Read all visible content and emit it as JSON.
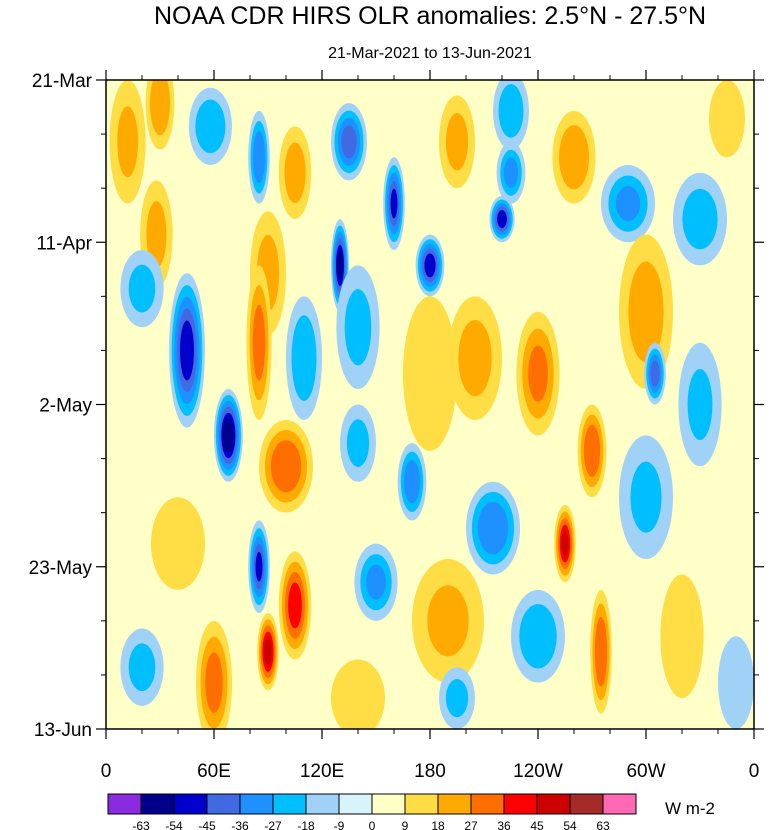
{
  "chart_data": {
    "type": "heatmap",
    "title": "NOAA CDR HIRS OLR anomalies: 2.5°N - 27.5°N",
    "subtitle": "21-Mar-2021 to 13-Jun-2021",
    "x_label_ticks": [
      "0",
      "60E",
      "120E",
      "180",
      "120W",
      "60W",
      "0"
    ],
    "x_tick_values": [
      0,
      60,
      120,
      180,
      240,
      300,
      360
    ],
    "xlim": [
      0,
      360
    ],
    "y_label_ticks": [
      "21-Mar",
      "11-Apr",
      "2-May",
      "23-May",
      "13-Jun"
    ],
    "y_tick_values": [
      0,
      21,
      42,
      63,
      84
    ],
    "ylim": [
      0,
      84
    ],
    "colorbar": {
      "levels": [
        -63,
        -54,
        -45,
        -36,
        -27,
        -18,
        -9,
        0,
        9,
        18,
        27,
        36,
        45,
        54,
        63
      ],
      "colors": [
        "#8a2be2",
        "#00008b",
        "#0000cd",
        "#4169e1",
        "#1e90ff",
        "#00bfff",
        "#a0d2f8",
        "#d8f4fb",
        "#ffffc8",
        "#ffdd44",
        "#ffaa00",
        "#ff6e00",
        "#ff0000",
        "#cc0000",
        "#a52a2a",
        "#ff69b4"
      ],
      "units": "W m-2"
    },
    "anomalies": [
      {
        "lon": 30,
        "day": 3,
        "value": 25,
        "rx": 8,
        "ry": 6
      },
      {
        "lon": 12,
        "day": 8,
        "value": 18,
        "rx": 10,
        "ry": 8
      },
      {
        "lon": 28,
        "day": 20,
        "value": 20,
        "rx": 9,
        "ry": 7
      },
      {
        "lon": 58,
        "day": 6,
        "value": -25,
        "rx": 12,
        "ry": 5
      },
      {
        "lon": 85,
        "day": 10,
        "value": -35,
        "rx": 6,
        "ry": 6
      },
      {
        "lon": 105,
        "day": 12,
        "value": 22,
        "rx": 9,
        "ry": 6
      },
      {
        "lon": 135,
        "day": 8,
        "value": -40,
        "rx": 10,
        "ry": 5
      },
      {
        "lon": 160,
        "day": 16,
        "value": -45,
        "rx": 6,
        "ry": 6
      },
      {
        "lon": 195,
        "day": 8,
        "value": 20,
        "rx": 10,
        "ry": 6
      },
      {
        "lon": 225,
        "day": 12,
        "value": -30,
        "rx": 8,
        "ry": 4
      },
      {
        "lon": 225,
        "day": 4,
        "value": -25,
        "rx": 10,
        "ry": 5
      },
      {
        "lon": 260,
        "day": 10,
        "value": 25,
        "rx": 12,
        "ry": 6
      },
      {
        "lon": 290,
        "day": 16,
        "value": -28,
        "rx": 15,
        "ry": 5
      },
      {
        "lon": 330,
        "day": 18,
        "value": -22,
        "rx": 15,
        "ry": 6
      },
      {
        "lon": 345,
        "day": 5,
        "value": 15,
        "rx": 10,
        "ry": 5
      },
      {
        "lon": 220,
        "day": 18,
        "value": -50,
        "rx": 7,
        "ry": 3
      },
      {
        "lon": 130,
        "day": 24,
        "value": -55,
        "rx": 5,
        "ry": 6
      },
      {
        "lon": 180,
        "day": 24,
        "value": -50,
        "rx": 8,
        "ry": 4
      },
      {
        "lon": 90,
        "day": 25,
        "value": 20,
        "rx": 10,
        "ry": 8
      },
      {
        "lon": 20,
        "day": 27,
        "value": -20,
        "rx": 12,
        "ry": 5
      },
      {
        "lon": 45,
        "day": 35,
        "value": -50,
        "rx": 10,
        "ry": 10
      },
      {
        "lon": 68,
        "day": 46,
        "value": -60,
        "rx": 8,
        "ry": 6
      },
      {
        "lon": 85,
        "day": 34,
        "value": 30,
        "rx": 7,
        "ry": 10
      },
      {
        "lon": 110,
        "day": 36,
        "value": -25,
        "rx": 10,
        "ry": 8
      },
      {
        "lon": 140,
        "day": 32,
        "value": -20,
        "rx": 12,
        "ry": 8
      },
      {
        "lon": 180,
        "day": 38,
        "value": 10,
        "rx": 15,
        "ry": 10
      },
      {
        "lon": 205,
        "day": 36,
        "value": 20,
        "rx": 15,
        "ry": 8
      },
      {
        "lon": 240,
        "day": 38,
        "value": 28,
        "rx": 12,
        "ry": 8
      },
      {
        "lon": 300,
        "day": 30,
        "value": 22,
        "rx": 15,
        "ry": 10
      },
      {
        "lon": 305,
        "day": 38,
        "value": -40,
        "rx": 6,
        "ry": 4
      },
      {
        "lon": 330,
        "day": 42,
        "value": -18,
        "rx": 12,
        "ry": 8
      },
      {
        "lon": 270,
        "day": 48,
        "value": 35,
        "rx": 8,
        "ry": 6
      },
      {
        "lon": 100,
        "day": 50,
        "value": 35,
        "rx": 15,
        "ry": 6
      },
      {
        "lon": 140,
        "day": 47,
        "value": -20,
        "rx": 10,
        "ry": 5
      },
      {
        "lon": 170,
        "day": 52,
        "value": -35,
        "rx": 8,
        "ry": 5
      },
      {
        "lon": 215,
        "day": 58,
        "value": -35,
        "rx": 15,
        "ry": 6
      },
      {
        "lon": 255,
        "day": 60,
        "value": 45,
        "rx": 6,
        "ry": 5
      },
      {
        "lon": 300,
        "day": 54,
        "value": -18,
        "rx": 15,
        "ry": 8
      },
      {
        "lon": 40,
        "day": 60,
        "value": 10,
        "rx": 15,
        "ry": 6
      },
      {
        "lon": 85,
        "day": 63,
        "value": -45,
        "rx": 6,
        "ry": 6
      },
      {
        "lon": 105,
        "day": 68,
        "value": 40,
        "rx": 9,
        "ry": 7
      },
      {
        "lon": 90,
        "day": 74,
        "value": 48,
        "rx": 6,
        "ry": 5
      },
      {
        "lon": 60,
        "day": 78,
        "value": 30,
        "rx": 10,
        "ry": 8
      },
      {
        "lon": 150,
        "day": 65,
        "value": -28,
        "rx": 12,
        "ry": 5
      },
      {
        "lon": 190,
        "day": 70,
        "value": 18,
        "rx": 20,
        "ry": 8
      },
      {
        "lon": 240,
        "day": 72,
        "value": -25,
        "rx": 15,
        "ry": 6
      },
      {
        "lon": 275,
        "day": 74,
        "value": 35,
        "rx": 6,
        "ry": 8
      },
      {
        "lon": 320,
        "day": 72,
        "value": 15,
        "rx": 12,
        "ry": 8
      },
      {
        "lon": 350,
        "day": 78,
        "value": -15,
        "rx": 10,
        "ry": 6
      },
      {
        "lon": 20,
        "day": 76,
        "value": -20,
        "rx": 12,
        "ry": 5
      },
      {
        "lon": 140,
        "day": 80,
        "value": 15,
        "rx": 15,
        "ry": 5
      },
      {
        "lon": 195,
        "day": 80,
        "value": -20,
        "rx": 10,
        "ry": 4
      }
    ]
  }
}
